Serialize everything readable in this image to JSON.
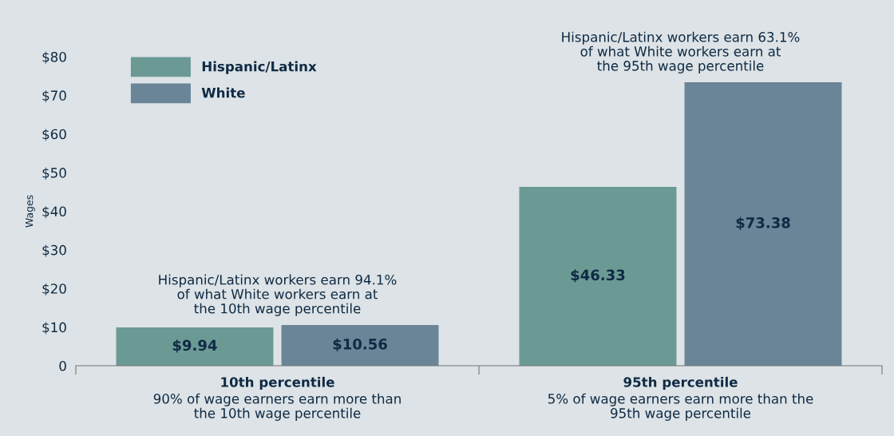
{
  "chart_data": {
    "type": "bar",
    "ylabel": "Wages",
    "categories": [
      "10th percentile\n90% of wage earners earn more than\nthe 10th wage percentile",
      "95th percentile\n5% of wage earners earn more than the\n95th wage percentile"
    ],
    "series": [
      {
        "name": "Hispanic/Latinx",
        "color": "#6b9a95",
        "values": [
          9.94,
          46.33
        ],
        "value_labels": [
          "$9.94",
          "$46.33"
        ]
      },
      {
        "name": "White",
        "color": "#6a8597",
        "values": [
          10.56,
          73.38
        ],
        "value_labels": [
          "$10.56",
          "$73.38"
        ]
      }
    ],
    "ylim": [
      0,
      80
    ],
    "yticks": [
      {
        "value": 0,
        "label": "0"
      },
      {
        "value": 10,
        "label": "$10"
      },
      {
        "value": 20,
        "label": "$20"
      },
      {
        "value": 30,
        "label": "$30"
      },
      {
        "value": 40,
        "label": "$40"
      },
      {
        "value": 50,
        "label": "$50"
      },
      {
        "value": 60,
        "label": "$60"
      },
      {
        "value": 70,
        "label": "$70"
      },
      {
        "value": 80,
        "label": "$80"
      }
    ],
    "annotations": [
      "Hispanic/Latinx workers earn 94.1%\nof what White workers earn at\nthe 10th wage percentile",
      "Hispanic/Latinx workers earn 63.1%\nof what White workers earn at\nthe 95th wage percentile"
    ],
    "legend": "top left",
    "grid": false
  }
}
